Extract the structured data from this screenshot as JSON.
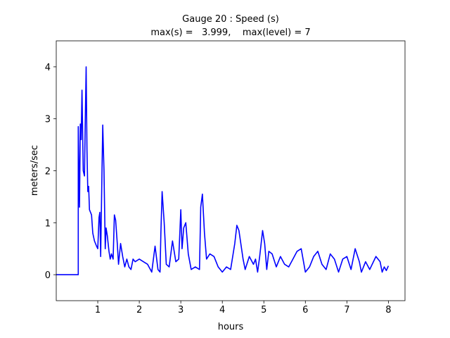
{
  "chart_data": {
    "type": "line",
    "title": "Gauge 20 : Speed (s)",
    "subtitle": "max(s) =   3.999,    max(level) = 7",
    "x_label": "hours",
    "y_label": "meters/sec",
    "x": [
      0,
      0.53,
      0.53,
      0.56,
      0.58,
      0.6,
      0.62,
      0.65,
      0.68,
      0.7,
      0.72,
      0.74,
      0.76,
      0.78,
      0.8,
      0.85,
      0.88,
      0.92,
      0.97,
      1.0,
      1.03,
      1.05,
      1.07,
      1.1,
      1.12,
      1.15,
      1.18,
      1.2,
      1.23,
      1.27,
      1.3,
      1.33,
      1.37,
      1.4,
      1.43,
      1.47,
      1.5,
      1.55,
      1.6,
      1.65,
      1.7,
      1.75,
      1.8,
      1.85,
      1.9,
      2.0,
      2.1,
      2.2,
      2.3,
      2.38,
      2.45,
      2.5,
      2.52,
      2.55,
      2.6,
      2.65,
      2.72,
      2.8,
      2.88,
      2.95,
      3.0,
      3.03,
      3.07,
      3.12,
      3.18,
      3.25,
      3.35,
      3.45,
      3.48,
      3.52,
      3.57,
      3.62,
      3.7,
      3.8,
      3.9,
      4.0,
      4.1,
      4.2,
      4.3,
      4.35,
      4.4,
      4.5,
      4.55,
      4.65,
      4.75,
      4.8,
      4.85,
      4.9,
      4.97,
      5.02,
      5.07,
      5.12,
      5.2,
      5.3,
      5.4,
      5.5,
      5.6,
      5.7,
      5.8,
      5.9,
      6.0,
      6.1,
      6.2,
      6.3,
      6.4,
      6.5,
      6.6,
      6.7,
      6.8,
      6.9,
      7.0,
      7.1,
      7.2,
      7.3,
      7.35,
      7.45,
      7.55,
      7.7,
      7.8,
      7.85,
      7.9,
      7.95,
      8.0
    ],
    "series": [
      {
        "color": "#0000ff",
        "values": [
          0,
          0,
          2.85,
          1.3,
          2.9,
          2.6,
          3.55,
          2.0,
          1.9,
          3.0,
          3.999,
          2.4,
          1.6,
          1.7,
          1.25,
          1.15,
          0.8,
          0.65,
          0.55,
          0.5,
          1.1,
          1.2,
          0.35,
          1.9,
          2.88,
          2.0,
          0.5,
          0.9,
          0.75,
          0.45,
          0.3,
          0.4,
          0.3,
          1.15,
          1.05,
          0.6,
          0.2,
          0.6,
          0.35,
          0.15,
          0.3,
          0.15,
          0.1,
          0.3,
          0.25,
          0.3,
          0.25,
          0.2,
          0.05,
          0.55,
          0.1,
          0.05,
          0.8,
          1.6,
          1.0,
          0.2,
          0.15,
          0.65,
          0.25,
          0.3,
          1.25,
          0.5,
          0.9,
          1.0,
          0.4,
          0.1,
          0.15,
          0.1,
          1.3,
          1.55,
          0.8,
          0.3,
          0.4,
          0.35,
          0.15,
          0.05,
          0.15,
          0.1,
          0.6,
          0.95,
          0.85,
          0.3,
          0.1,
          0.35,
          0.2,
          0.3,
          0.05,
          0.35,
          0.85,
          0.6,
          0.1,
          0.45,
          0.4,
          0.15,
          0.35,
          0.2,
          0.15,
          0.3,
          0.45,
          0.5,
          0.05,
          0.15,
          0.35,
          0.45,
          0.2,
          0.1,
          0.4,
          0.3,
          0.05,
          0.3,
          0.35,
          0.1,
          0.5,
          0.25,
          0.05,
          0.25,
          0.1,
          0.35,
          0.25,
          0.05,
          0.15,
          0.08,
          0.17
        ]
      }
    ],
    "xlim": [
      0,
      8.4
    ],
    "ylim": [
      -0.5,
      4.5
    ],
    "xticks": [
      1,
      2,
      3,
      4,
      5,
      6,
      7,
      8
    ],
    "yticks": [
      0,
      1,
      2,
      3,
      4
    ]
  }
}
